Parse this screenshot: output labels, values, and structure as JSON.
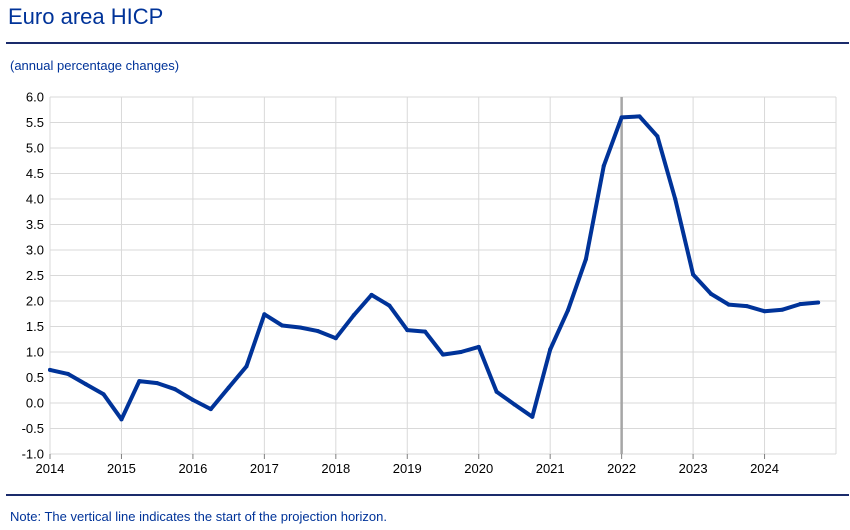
{
  "header": {
    "title": "Euro area HICP",
    "subtitle": "(annual percentage changes)"
  },
  "footer": {
    "note": "Note: The vertical line indicates the start of the projection horizon."
  },
  "colors": {
    "title": "#003399",
    "series_line": "#003399",
    "projection_marker": "#a6a6a6",
    "gridline": "#d9d9d9",
    "rule": "#1a2b6b"
  },
  "chart_data": {
    "type": "line",
    "title": "Euro area HICP",
    "subtitle": "(annual percentage changes)",
    "xlabel": "",
    "ylabel": "",
    "ylim": [
      -1.0,
      6.0
    ],
    "yticks": [
      -1.0,
      -0.5,
      0.0,
      0.5,
      1.0,
      1.5,
      2.0,
      2.5,
      3.0,
      3.5,
      4.0,
      4.5,
      5.0,
      5.5,
      6.0
    ],
    "xlim": [
      2014,
      2025
    ],
    "xticks": [
      "2014",
      "2015",
      "2016",
      "2017",
      "2018",
      "2019",
      "2020",
      "2021",
      "2022",
      "2023",
      "2024"
    ],
    "grid": true,
    "legend": "none",
    "projection_start": 2022.0,
    "series": [
      {
        "x": [
          2014.0,
          2014.25,
          2014.5,
          2014.75,
          2015.0,
          2015.25,
          2015.5,
          2015.75,
          2016.0,
          2016.25,
          2016.5,
          2016.75,
          2017.0,
          2017.25,
          2017.5,
          2017.75,
          2018.0,
          2018.25,
          2018.5,
          2018.75,
          2019.0,
          2019.25,
          2019.5,
          2019.75,
          2020.0,
          2020.25,
          2020.5,
          2020.75,
          2021.0,
          2021.25,
          2021.5,
          2021.75,
          2022.0,
          2022.25,
          2022.5,
          2022.75,
          2023.0,
          2023.25,
          2023.5,
          2023.75,
          2024.0,
          2024.25,
          2024.5,
          2024.75
        ],
        "values": [
          0.65,
          0.57,
          0.37,
          0.17,
          -0.32,
          0.43,
          0.39,
          0.27,
          0.06,
          -0.12,
          0.3,
          0.72,
          1.74,
          1.52,
          1.48,
          1.41,
          1.27,
          1.72,
          2.12,
          1.91,
          1.43,
          1.4,
          0.95,
          1.0,
          1.1,
          0.22,
          -0.03,
          -0.27,
          1.05,
          1.82,
          2.82,
          4.65,
          5.6,
          5.62,
          5.23,
          4.0,
          2.52,
          2.14,
          1.93,
          1.9,
          1.8,
          1.83,
          1.94,
          1.97
        ]
      }
    ]
  }
}
